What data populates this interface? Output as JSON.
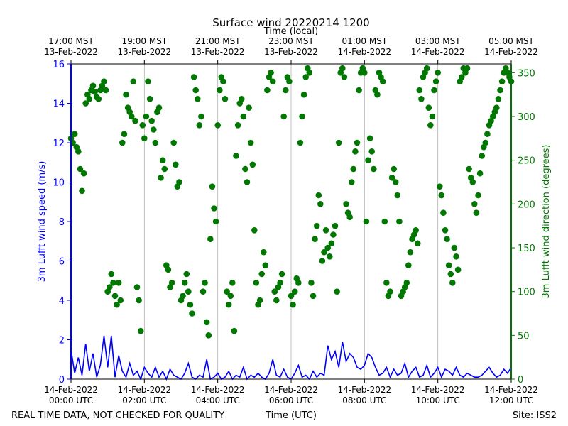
{
  "chart_data": {
    "type": "line+scatter",
    "title": "Surface wind 20220214 1200",
    "top_axis_label": "Time (local)",
    "xlabel": "Time (UTC)",
    "ylabel_left": "3m Lufft wind speed (m/s)",
    "ylabel_right": "3m Lufft wind direction (degrees)",
    "footer_left": "REAL TIME DATA, NOT CHECKED FOR QUALITY",
    "footer_right": "Site: ISS2",
    "x_range_utc_hours": [
      0,
      12
    ],
    "ylim_left": [
      0,
      16
    ],
    "ylim_right": [
      0,
      360
    ],
    "y_ticks_left": [
      "0",
      "2",
      "4",
      "6",
      "8",
      "10",
      "12",
      "14",
      "16"
    ],
    "y_ticks_right": [
      "0",
      "50",
      "100",
      "150",
      "200",
      "250",
      "300",
      "350"
    ],
    "x_ticks_bottom": [
      {
        "l1": "14-Feb-2022",
        "l2": "00:00 UTC"
      },
      {
        "l1": "14-Feb-2022",
        "l2": "02:00 UTC"
      },
      {
        "l1": "14-Feb-2022",
        "l2": "04:00 UTC"
      },
      {
        "l1": "14-Feb-2022",
        "l2": "06:00 UTC"
      },
      {
        "l1": "14-Feb-2022",
        "l2": "08:00 UTC"
      },
      {
        "l1": "14-Feb-2022",
        "l2": "10:00 UTC"
      },
      {
        "l1": "14-Feb-2022",
        "l2": "12:00 UTC"
      }
    ],
    "x_ticks_top": [
      {
        "l1": "17:00 MST",
        "l2": "13-Feb-2022"
      },
      {
        "l1": "19:00 MST",
        "l2": "13-Feb-2022"
      },
      {
        "l1": "21:00 MST",
        "l2": "13-Feb-2022"
      },
      {
        "l1": "23:00 MST",
        "l2": "13-Feb-2022"
      },
      {
        "l1": "01:00 MST",
        "l2": "14-Feb-2022"
      },
      {
        "l1": "03:00 MST",
        "l2": "14-Feb-2022"
      },
      {
        "l1": "05:00 MST",
        "l2": "14-Feb-2022"
      }
    ],
    "grid": "vertical",
    "speed_color": "#0000ff",
    "direction_color": "#007700",
    "series": [
      {
        "name": "3m Lufft wind speed (m/s)",
        "style": "line",
        "x": [
          0.0,
          0.1,
          0.2,
          0.3,
          0.4,
          0.5,
          0.6,
          0.7,
          0.8,
          0.9,
          1.0,
          1.1,
          1.2,
          1.3,
          1.4,
          1.5,
          1.6,
          1.7,
          1.8,
          1.9,
          2.0,
          2.1,
          2.2,
          2.3,
          2.4,
          2.5,
          2.6,
          2.7,
          2.8,
          2.9,
          3.0,
          3.1,
          3.2,
          3.3,
          3.4,
          3.5,
          3.6,
          3.7,
          3.8,
          3.9,
          4.0,
          4.1,
          4.2,
          4.3,
          4.4,
          4.5,
          4.6,
          4.7,
          4.8,
          4.9,
          5.0,
          5.1,
          5.2,
          5.3,
          5.4,
          5.5,
          5.6,
          5.7,
          5.8,
          5.9,
          6.0,
          6.1,
          6.2,
          6.3,
          6.4,
          6.5,
          6.6,
          6.7,
          6.8,
          6.9,
          7.0,
          7.1,
          7.2,
          7.3,
          7.4,
          7.5,
          7.6,
          7.7,
          7.8,
          7.9,
          8.0,
          8.1,
          8.2,
          8.3,
          8.4,
          8.5,
          8.6,
          8.7,
          8.8,
          8.9,
          9.0,
          9.1,
          9.2,
          9.3,
          9.4,
          9.5,
          9.6,
          9.7,
          9.8,
          9.9,
          10.0,
          10.1,
          10.2,
          10.3,
          10.4,
          10.5,
          10.6,
          10.7,
          10.8,
          10.9,
          11.0,
          11.1,
          11.2,
          11.3,
          11.4,
          11.5,
          11.6,
          11.7,
          11.8,
          11.9,
          12.0
        ],
        "values": [
          1.5,
          0.3,
          1.1,
          0.2,
          1.8,
          0.4,
          1.3,
          0.1,
          0.7,
          2.2,
          0.6,
          2.2,
          0.1,
          1.2,
          0.4,
          0.1,
          0.8,
          0.2,
          0.4,
          0.0,
          0.6,
          0.3,
          0.1,
          0.6,
          0.1,
          0.4,
          0.0,
          0.5,
          0.2,
          0.1,
          0.0,
          0.3,
          0.8,
          0.1,
          0.0,
          0.2,
          0.1,
          1.0,
          0.0,
          0.1,
          0.3,
          0.0,
          0.1,
          0.4,
          0.0,
          0.2,
          0.1,
          0.6,
          0.0,
          0.2,
          0.1,
          0.3,
          0.1,
          0.0,
          0.3,
          1.0,
          0.2,
          0.1,
          0.5,
          0.1,
          0.0,
          0.3,
          0.7,
          0.1,
          0.2,
          0.0,
          0.4,
          0.1,
          0.3,
          0.2,
          1.7,
          1.0,
          1.4,
          0.6,
          1.9,
          0.9,
          1.3,
          1.1,
          0.6,
          0.5,
          0.7,
          1.3,
          1.1,
          0.6,
          0.2,
          0.3,
          0.6,
          0.1,
          0.5,
          0.2,
          0.3,
          0.8,
          0.1,
          0.4,
          0.6,
          0.1,
          0.2,
          0.7,
          0.1,
          0.3,
          0.6,
          0.1,
          0.5,
          0.4,
          0.2,
          0.6,
          0.2,
          0.1,
          0.3,
          0.2,
          0.1,
          0.1,
          0.2,
          0.4,
          0.6,
          0.3,
          0.1,
          0.2,
          0.5,
          0.3,
          0.6
        ]
      },
      {
        "name": "3m Lufft wind direction (degrees)",
        "style": "scatter",
        "x": [
          0.0,
          0.05,
          0.1,
          0.15,
          0.2,
          0.25,
          0.3,
          0.35,
          0.4,
          0.45,
          0.5,
          0.55,
          0.6,
          0.65,
          0.7,
          0.75,
          0.8,
          0.85,
          0.9,
          0.95,
          1.0,
          1.05,
          1.1,
          1.15,
          1.2,
          1.25,
          1.3,
          1.35,
          1.4,
          1.45,
          1.5,
          1.55,
          1.6,
          1.65,
          1.7,
          1.75,
          1.8,
          1.85,
          1.9,
          1.95,
          2.0,
          2.05,
          2.1,
          2.15,
          2.2,
          2.25,
          2.3,
          2.35,
          2.4,
          2.45,
          2.5,
          2.55,
          2.6,
          2.65,
          2.7,
          2.75,
          2.8,
          2.85,
          2.9,
          2.95,
          3.0,
          3.05,
          3.1,
          3.15,
          3.2,
          3.25,
          3.3,
          3.35,
          3.4,
          3.45,
          3.5,
          3.55,
          3.6,
          3.65,
          3.7,
          3.75,
          3.8,
          3.85,
          3.9,
          3.95,
          4.0,
          4.05,
          4.1,
          4.15,
          4.2,
          4.25,
          4.3,
          4.35,
          4.4,
          4.45,
          4.5,
          4.55,
          4.6,
          4.65,
          4.7,
          4.75,
          4.8,
          4.85,
          4.9,
          4.95,
          5.0,
          5.05,
          5.1,
          5.15,
          5.2,
          5.25,
          5.3,
          5.35,
          5.4,
          5.45,
          5.5,
          5.55,
          5.6,
          5.65,
          5.7,
          5.75,
          5.8,
          5.85,
          5.9,
          5.95,
          6.0,
          6.05,
          6.1,
          6.15,
          6.2,
          6.25,
          6.3,
          6.35,
          6.4,
          6.45,
          6.5,
          6.55,
          6.6,
          6.65,
          6.7,
          6.75,
          6.8,
          6.85,
          6.9,
          6.95,
          7.0,
          7.05,
          7.1,
          7.15,
          7.2,
          7.25,
          7.3,
          7.35,
          7.4,
          7.45,
          7.5,
          7.55,
          7.6,
          7.65,
          7.7,
          7.75,
          7.8,
          7.85,
          7.9,
          7.95,
          8.0,
          8.05,
          8.1,
          8.15,
          8.2,
          8.25,
          8.3,
          8.35,
          8.4,
          8.45,
          8.5,
          8.55,
          8.6,
          8.65,
          8.7,
          8.75,
          8.8,
          8.85,
          8.9,
          8.95,
          9.0,
          9.05,
          9.1,
          9.15,
          9.2,
          9.25,
          9.3,
          9.35,
          9.4,
          9.45,
          9.5,
          9.55,
          9.6,
          9.65,
          9.7,
          9.75,
          9.8,
          9.85,
          9.9,
          9.95,
          10.0,
          10.05,
          10.1,
          10.15,
          10.2,
          10.25,
          10.3,
          10.35,
          10.4,
          10.45,
          10.5,
          10.55,
          10.6,
          10.65,
          10.7,
          10.75,
          10.8,
          10.85,
          10.9,
          10.95,
          11.0,
          11.05,
          11.1,
          11.15,
          11.2,
          11.25,
          11.3,
          11.35,
          11.4,
          11.45,
          11.5,
          11.55,
          11.6,
          11.65,
          11.7,
          11.75,
          11.8,
          11.85,
          11.9,
          11.95,
          12.0
        ],
        "values": [
          275,
          270,
          280,
          265,
          260,
          240,
          215,
          235,
          315,
          325,
          320,
          330,
          335,
          328,
          322,
          320,
          330,
          335,
          340,
          330,
          100,
          105,
          120,
          110,
          95,
          85,
          110,
          90,
          270,
          280,
          325,
          310,
          305,
          300,
          340,
          295,
          105,
          90,
          55,
          290,
          275,
          300,
          340,
          320,
          295,
          285,
          270,
          305,
          310,
          230,
          250,
          240,
          130,
          125,
          105,
          110,
          270,
          245,
          220,
          225,
          90,
          95,
          110,
          120,
          100,
          85,
          75,
          345,
          330,
          320,
          290,
          300,
          100,
          110,
          65,
          50,
          160,
          220,
          195,
          180,
          290,
          330,
          345,
          340,
          320,
          100,
          85,
          95,
          110,
          55,
          255,
          290,
          315,
          320,
          300,
          240,
          225,
          310,
          270,
          245,
          170,
          110,
          85,
          90,
          120,
          145,
          130,
          330,
          345,
          350,
          340,
          100,
          90,
          105,
          110,
          120,
          300,
          330,
          345,
          340,
          95,
          85,
          100,
          115,
          110,
          270,
          300,
          325,
          345,
          355,
          350,
          110,
          95,
          160,
          175,
          210,
          200,
          135,
          145,
          170,
          150,
          140,
          155,
          165,
          175,
          100,
          270,
          350,
          355,
          345,
          200,
          190,
          185,
          225,
          240,
          260,
          270,
          330,
          350,
          355,
          350,
          180,
          250,
          275,
          260,
          240,
          330,
          325,
          350,
          345,
          340,
          180,
          110,
          95,
          100,
          230,
          240,
          225,
          210,
          180,
          95,
          100,
          105,
          110,
          130,
          145,
          160,
          165,
          170,
          155,
          330,
          320,
          345,
          350,
          355,
          310,
          290,
          300,
          330,
          340,
          350,
          220,
          210,
          190,
          170,
          160,
          130,
          120,
          110,
          150,
          140,
          125,
          340,
          345,
          355,
          350,
          355,
          240,
          230,
          225,
          200,
          190,
          210,
          235,
          255,
          265,
          270,
          280,
          290,
          295,
          300,
          305,
          310,
          320,
          330,
          340,
          350,
          355,
          350,
          345,
          340
        ]
      }
    ]
  }
}
